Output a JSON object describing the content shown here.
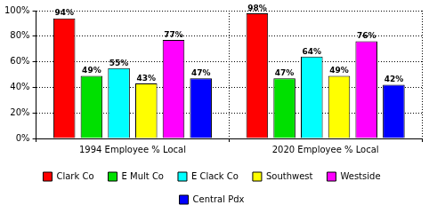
{
  "chart_data": {
    "type": "bar",
    "categories": [
      "1994 Employee % Local",
      "2020 Employee % Local"
    ],
    "series": [
      {
        "name": "Clark Co",
        "color": "#ff0000",
        "values": [
          94,
          98
        ],
        "value_labels": [
          "94%",
          "98%"
        ]
      },
      {
        "name": "E Mult Co",
        "color": "#00e000",
        "values": [
          49,
          47
        ],
        "value_labels": [
          "49%",
          "47%"
        ]
      },
      {
        "name": "E Clack Co",
        "color": "#00ffff",
        "values": [
          55,
          64
        ],
        "value_labels": [
          "55%",
          "64%"
        ]
      },
      {
        "name": "Southwest",
        "color": "#ffff00",
        "values": [
          43,
          49
        ],
        "value_labels": [
          "43%",
          "49%"
        ]
      },
      {
        "name": "Westside",
        "color": "#ff00ff",
        "values": [
          77,
          76
        ],
        "value_labels": [
          "77%",
          "76%"
        ]
      },
      {
        "name": "Central Pdx",
        "color": "#0000ff",
        "values": [
          47,
          42
        ],
        "value_labels": [
          "47%",
          "42%"
        ]
      }
    ],
    "ylim": [
      0,
      100
    ],
    "yticks": [
      {
        "value": 0,
        "label": "0%"
      },
      {
        "value": 20,
        "label": "20%"
      },
      {
        "value": 40,
        "label": "40%"
      },
      {
        "value": 60,
        "label": "60%"
      },
      {
        "value": 80,
        "label": "80%"
      },
      {
        "value": 100,
        "label": "100%"
      }
    ],
    "grid": true,
    "legend": "bottom",
    "data_labels": true
  }
}
